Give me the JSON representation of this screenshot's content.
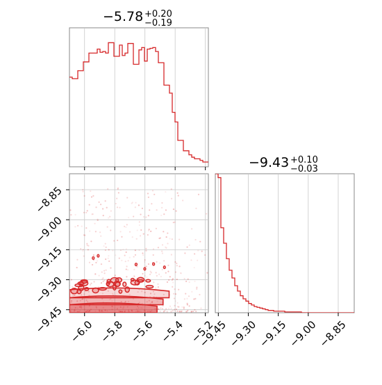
{
  "chart_data": {
    "type": "corner",
    "accent_color": "#d62728",
    "grid": true,
    "parameters": [
      {
        "title_main": "−5.78",
        "title_sup": "+0.20",
        "title_sub": "−0.19",
        "range": [
          -6.1,
          -5.18
        ],
        "ticks": [
          -6.0,
          -5.8,
          -5.6,
          -5.4,
          -5.2
        ],
        "tick_labels": [
          "−6.0",
          "−5.8",
          "−5.6",
          "−5.4",
          "−5.2"
        ]
      },
      {
        "title_main": "−9.43",
        "title_sup": "+0.10",
        "title_sub": "−0.03",
        "range": [
          -9.465,
          -8.77
        ],
        "ticks": [
          -9.45,
          -9.3,
          -9.15,
          -9.0,
          -8.85
        ],
        "tick_labels": [
          "−9.45",
          "−9.30",
          "−9.15",
          "−9.00",
          "−8.85"
        ]
      }
    ],
    "histogram_1": {
      "bin_edges_start": -6.1,
      "bin_width": 0.0184,
      "counts": [
        112,
        110,
        110,
        120,
        120,
        131,
        131,
        142,
        142,
        142,
        147,
        143,
        144,
        142,
        155,
        155,
        138,
        138,
        152,
        139,
        142,
        154,
        154,
        128,
        128,
        146,
        149,
        132,
        147,
        148,
        149,
        144,
        130,
        130,
        102,
        102,
        92,
        68,
        56,
        33,
        33,
        20,
        20,
        15,
        12,
        10,
        10,
        8,
        6,
        6,
        6,
        4,
        4,
        3,
        3,
        2,
        2,
        1,
        1,
        1
      ]
    },
    "histogram_2": {
      "bin_edges_start": -9.465,
      "bin_width": 0.0139,
      "counts": [
        180,
        175,
        110,
        90,
        70,
        55,
        45,
        35,
        28,
        22,
        18,
        15,
        12,
        10,
        8,
        7,
        6,
        5,
        4,
        3,
        3,
        2,
        2,
        2,
        2,
        1,
        1,
        1,
        1,
        1,
        1,
        0,
        0,
        0,
        0,
        0,
        0,
        0,
        0,
        0,
        0,
        0,
        0,
        0,
        0,
        0,
        0,
        0,
        0,
        0
      ]
    },
    "scatter_points_description": "dense near y≈-9.45 across x -6.1 to -5.5, sparse scatter up to y≈-8.8"
  }
}
